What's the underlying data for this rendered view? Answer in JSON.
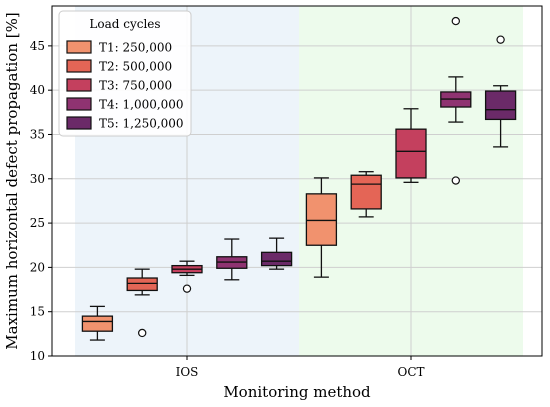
{
  "chart_data": {
    "type": "box",
    "xlabel": "Monitoring method",
    "ylabel": "Maximum horizontal defect propagation [%]",
    "ylim": [
      10,
      49.5
    ],
    "yticks": [
      10,
      15,
      20,
      25,
      30,
      35,
      40,
      45
    ],
    "grid": true,
    "legend": {
      "title": "Load cycles",
      "position": "top-left"
    },
    "categories": [
      "IOS",
      "OCT"
    ],
    "category_background_colors": [
      "#edf4fa",
      "#edfbec"
    ],
    "series": [
      {
        "name": "T1: 250,000",
        "color": "#f1926e",
        "boxes": [
          {
            "whislo": 11.8,
            "q1": 12.8,
            "med": 13.9,
            "q3": 14.5,
            "whishi": 15.6,
            "fliers": []
          },
          {
            "whislo": 18.9,
            "q1": 22.5,
            "med": 25.3,
            "q3": 28.3,
            "whishi": 30.1,
            "fliers": []
          }
        ]
      },
      {
        "name": "T2: 500,000",
        "color": "#e46556",
        "boxes": [
          {
            "whislo": 16.9,
            "q1": 17.4,
            "med": 18.2,
            "q3": 18.8,
            "whishi": 19.8,
            "fliers": [
              12.6
            ]
          },
          {
            "whislo": 25.7,
            "q1": 26.6,
            "med": 29.4,
            "q3": 30.4,
            "whishi": 30.8,
            "fliers": []
          }
        ]
      },
      {
        "name": "T3: 750,000",
        "color": "#c4405e",
        "boxes": [
          {
            "whislo": 19.1,
            "q1": 19.4,
            "med": 19.8,
            "q3": 20.2,
            "whishi": 20.7,
            "fliers": [
              17.6
            ]
          },
          {
            "whislo": 29.6,
            "q1": 30.1,
            "med": 33.1,
            "q3": 35.6,
            "whishi": 37.9,
            "fliers": []
          }
        ]
      },
      {
        "name": "T4: 1,000,000",
        "color": "#8f3371",
        "boxes": [
          {
            "whislo": 18.6,
            "q1": 19.9,
            "med": 20.6,
            "q3": 21.2,
            "whishi": 23.2,
            "fliers": []
          },
          {
            "whislo": 36.4,
            "q1": 38.1,
            "med": 39.0,
            "q3": 39.8,
            "whishi": 41.5,
            "fliers": [
              29.8,
              47.8
            ]
          }
        ]
      },
      {
        "name": "T5: 1,250,000",
        "color": "#6b2a68",
        "boxes": [
          {
            "whislo": 19.8,
            "q1": 20.2,
            "med": 20.7,
            "q3": 21.7,
            "whishi": 23.3,
            "fliers": []
          },
          {
            "whislo": 33.6,
            "q1": 36.7,
            "med": 37.8,
            "q3": 39.9,
            "whishi": 40.5,
            "fliers": [
              45.7
            ]
          }
        ]
      }
    ]
  }
}
